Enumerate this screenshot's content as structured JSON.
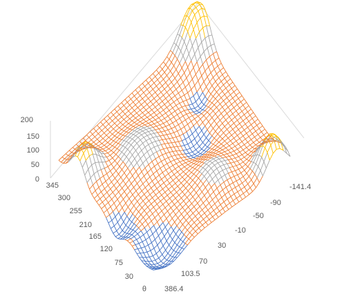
{
  "chart_data": {
    "type": "surface",
    "title": "",
    "z_axis": {
      "ticks": [
        "200",
        "150",
        "100",
        "50",
        "0"
      ],
      "range": [
        0,
        200
      ]
    },
    "left_axis": {
      "ticks": [
        "345",
        "300",
        "255",
        "210",
        "165",
        "120",
        "75",
        "30",
        "θ"
      ]
    },
    "right_axis": {
      "ticks": [
        "386.4",
        "103.5",
        "70",
        "30",
        "-10",
        "-50",
        "-90",
        "-141.4"
      ]
    },
    "bands": [
      {
        "range": "0-50",
        "color": "#4472c4"
      },
      {
        "range": "50-100",
        "color": "#ed7d31"
      },
      {
        "range": "100-150",
        "color": "#a5a5a5"
      },
      {
        "range": "150-200",
        "color": "#ffc000"
      }
    ],
    "grid": true,
    "legend": "none"
  }
}
